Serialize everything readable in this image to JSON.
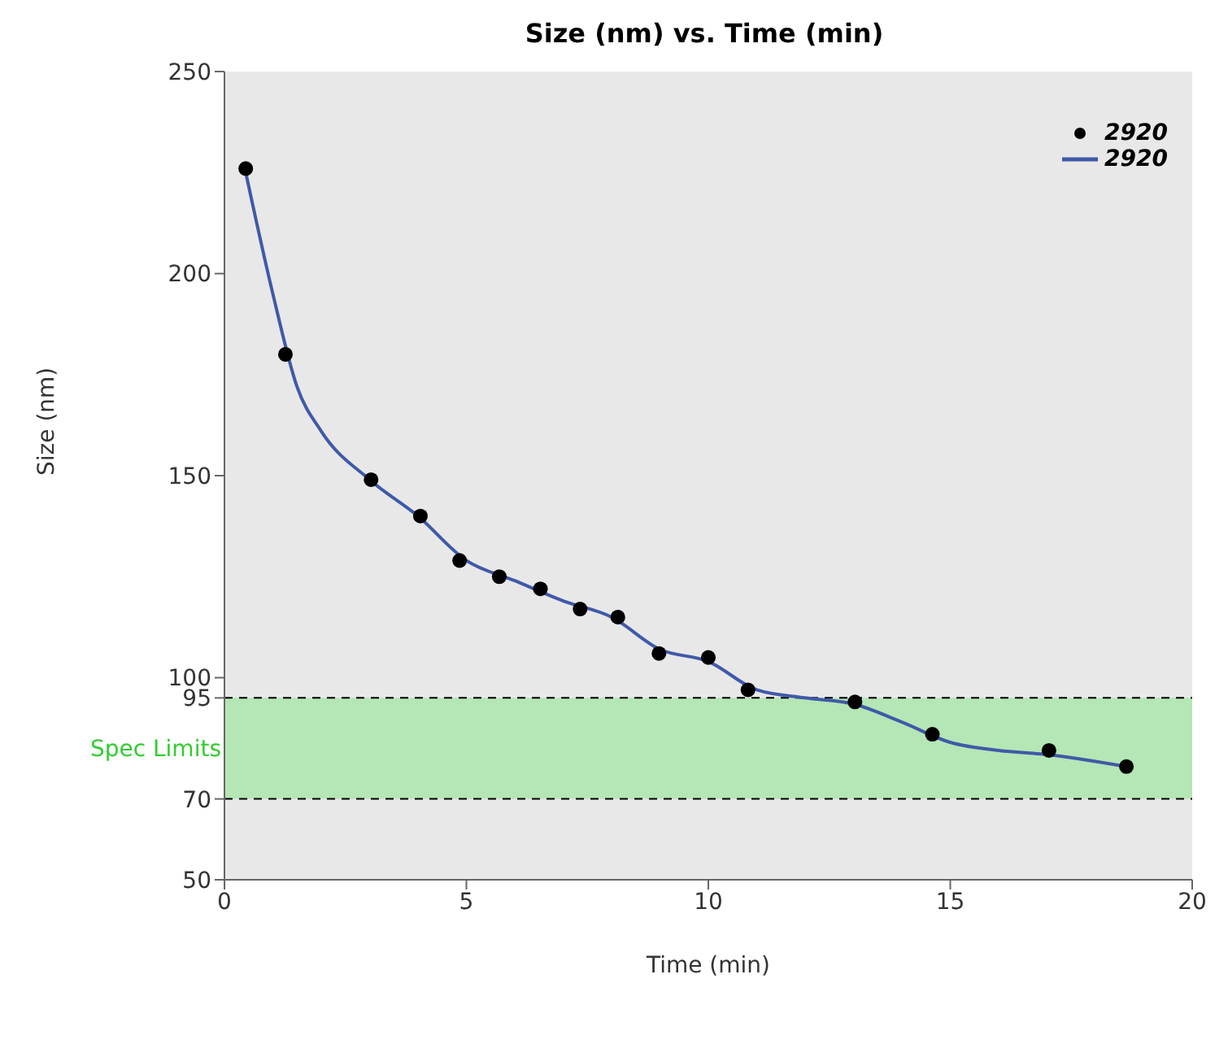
{
  "chart_data": {
    "type": "scatter",
    "title": "Size (nm) vs. Time (min)",
    "xlabel": "Time (min)",
    "ylabel": "Size (nm)",
    "xlim": [
      0,
      20
    ],
    "xticks": [
      0,
      5,
      10,
      15,
      20
    ],
    "ylim": [
      50,
      250
    ],
    "yticks": [
      50,
      70,
      95,
      100,
      150,
      200,
      250
    ],
    "legend": "top right",
    "series": [
      {
        "name": "2920",
        "color": "#000000",
        "marker": "circle",
        "x": [
          0.44,
          1.26,
          3.03,
          4.05,
          4.86,
          5.68,
          6.53,
          7.35,
          8.13,
          8.98,
          10.0,
          10.82,
          13.03,
          14.63,
          17.04,
          18.64
        ],
        "values": [
          226,
          180,
          149,
          140,
          129,
          125,
          122,
          117,
          115,
          106,
          105,
          97,
          94,
          86,
          82,
          78
        ]
      },
      {
        "name": "2920",
        "type": "line",
        "color": "#4059a8",
        "marker": "none",
        "line_style": "solid",
        "x": [
          0.44,
          1.0,
          1.5,
          2.0,
          3.0,
          4.0,
          5.0,
          6.0,
          7.0,
          8.0,
          9.0,
          10.0,
          11.0,
          12.0,
          13.0,
          14.0,
          15.0,
          16.0,
          17.0,
          18.64
        ],
        "values": [
          225,
          195,
          172,
          161,
          149,
          140,
          129,
          124,
          119,
          115,
          107,
          104,
          97,
          95,
          93.5,
          89,
          84,
          82,
          81,
          78
        ]
      }
    ],
    "bands": [
      {
        "axis": "y",
        "from": 70,
        "to": 95,
        "label": "Spec Limits",
        "color": "#b5e6b5"
      }
    ],
    "ref_lines": [
      {
        "axis": "y",
        "value": 95,
        "color": "#000000",
        "line_style": "dashed"
      },
      {
        "axis": "y",
        "value": 70,
        "color": "#000000",
        "line_style": "dashed"
      }
    ]
  }
}
